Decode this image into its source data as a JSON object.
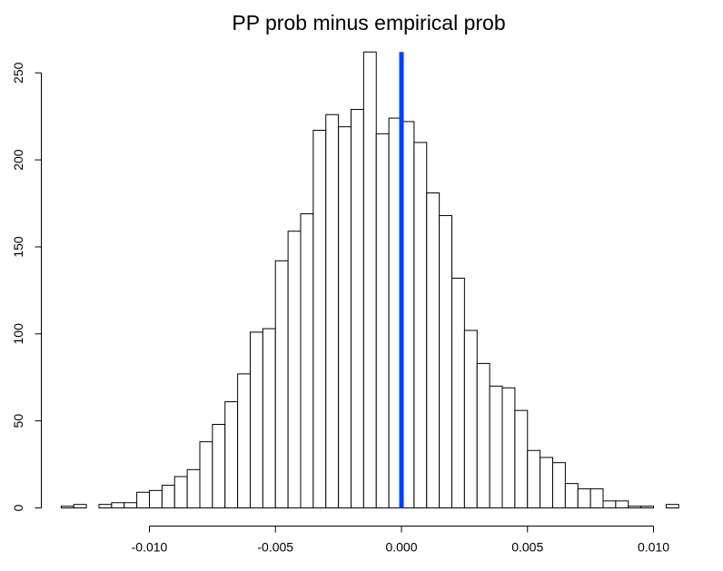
{
  "chart_data": {
    "type": "bar",
    "title": "PP prob minus empirical prob",
    "xlabel": "",
    "ylabel": "",
    "bin_width": 0.0005,
    "bins": [
      {
        "x0": -0.0135,
        "count": 1
      },
      {
        "x0": -0.013,
        "count": 2
      },
      {
        "x0": -0.0125,
        "count": 0
      },
      {
        "x0": -0.012,
        "count": 2
      },
      {
        "x0": -0.0115,
        "count": 3
      },
      {
        "x0": -0.011,
        "count": 3
      },
      {
        "x0": -0.0105,
        "count": 9
      },
      {
        "x0": -0.01,
        "count": 10
      },
      {
        "x0": -0.0095,
        "count": 13
      },
      {
        "x0": -0.009,
        "count": 18
      },
      {
        "x0": -0.0085,
        "count": 22
      },
      {
        "x0": -0.008,
        "count": 38
      },
      {
        "x0": -0.0075,
        "count": 48
      },
      {
        "x0": -0.007,
        "count": 61
      },
      {
        "x0": -0.0065,
        "count": 77
      },
      {
        "x0": -0.006,
        "count": 101
      },
      {
        "x0": -0.0055,
        "count": 103
      },
      {
        "x0": -0.005,
        "count": 142
      },
      {
        "x0": -0.0045,
        "count": 159
      },
      {
        "x0": -0.004,
        "count": 169
      },
      {
        "x0": -0.0035,
        "count": 217
      },
      {
        "x0": -0.003,
        "count": 226
      },
      {
        "x0": -0.0025,
        "count": 219
      },
      {
        "x0": -0.002,
        "count": 229
      },
      {
        "x0": -0.0015,
        "count": 262
      },
      {
        "x0": -0.001,
        "count": 215
      },
      {
        "x0": -0.0005,
        "count": 224
      },
      {
        "x0": 0.0,
        "count": 222
      },
      {
        "x0": 0.0005,
        "count": 210
      },
      {
        "x0": 0.001,
        "count": 181
      },
      {
        "x0": 0.0015,
        "count": 168
      },
      {
        "x0": 0.002,
        "count": 132
      },
      {
        "x0": 0.0025,
        "count": 102
      },
      {
        "x0": 0.003,
        "count": 83
      },
      {
        "x0": 0.0035,
        "count": 70
      },
      {
        "x0": 0.004,
        "count": 69
      },
      {
        "x0": 0.0045,
        "count": 56
      },
      {
        "x0": 0.005,
        "count": 33
      },
      {
        "x0": 0.0055,
        "count": 29
      },
      {
        "x0": 0.006,
        "count": 26
      },
      {
        "x0": 0.0065,
        "count": 14
      },
      {
        "x0": 0.007,
        "count": 11
      },
      {
        "x0": 0.0075,
        "count": 11
      },
      {
        "x0": 0.008,
        "count": 4
      },
      {
        "x0": 0.0085,
        "count": 4
      },
      {
        "x0": 0.009,
        "count": 1
      },
      {
        "x0": 0.0095,
        "count": 1
      },
      {
        "x0": 0.01,
        "count": 0
      },
      {
        "x0": 0.0105,
        "count": 2
      }
    ],
    "x_ticks": [
      -0.01,
      -0.005,
      0.0,
      0.005,
      0.01
    ],
    "x_tick_labels": [
      "-0.010",
      "-0.005",
      "0.000",
      "0.005",
      "0.010"
    ],
    "y_ticks": [
      0,
      50,
      100,
      150,
      200,
      250
    ],
    "y_tick_labels": [
      "0",
      "50",
      "100",
      "150",
      "200",
      "250"
    ],
    "xlim": [
      -0.0135,
      0.011
    ],
    "ylim": [
      0,
      262
    ],
    "reference_line": {
      "x": 0.0,
      "color": "#0040ff"
    },
    "bar_fill": "#ffffff",
    "bar_stroke": "#000000",
    "grid": false,
    "legend": "none"
  }
}
